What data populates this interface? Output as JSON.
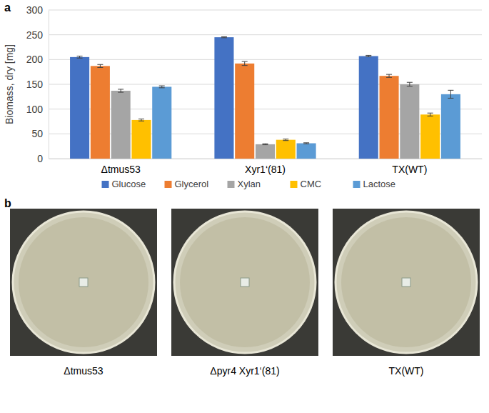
{
  "chart_data": {
    "type": "bar",
    "y_label": "Biomass, dry [mg]",
    "categories": [
      "Δtmus53",
      "Xyr1‘(81)",
      "TX(WT)"
    ],
    "series": [
      {
        "name": "Glucose",
        "color": "#4472c4",
        "values": [
          205,
          245,
          207
        ],
        "errors": [
          2,
          1,
          1.5
        ]
      },
      {
        "name": "Glycerol",
        "color": "#ed7d31",
        "values": [
          187,
          192,
          167
        ],
        "errors": [
          3,
          4,
          3
        ]
      },
      {
        "name": "Xylan",
        "color": "#a5a5a5",
        "values": [
          137,
          29,
          150
        ],
        "errors": [
          3,
          1,
          4
        ]
      },
      {
        "name": "CMC",
        "color": "#ffc000",
        "values": [
          78,
          38,
          89
        ],
        "errors": [
          2,
          1.5,
          3
        ]
      },
      {
        "name": "Lactose",
        "color": "#5b9bd5",
        "values": [
          145,
          31,
          130
        ],
        "errors": [
          2,
          1,
          8
        ]
      }
    ],
    "ylim": [
      0,
      300
    ],
    "yticks": [
      0,
      50,
      100,
      150,
      200,
      250,
      300
    ],
    "grid": true,
    "legend": "bottom"
  },
  "panel_labels": [
    "a",
    "b"
  ],
  "plates": {
    "captions": [
      "Δtmus53",
      "Δpyr4 Xyr1‘(81)",
      "TX(WT)"
    ]
  }
}
